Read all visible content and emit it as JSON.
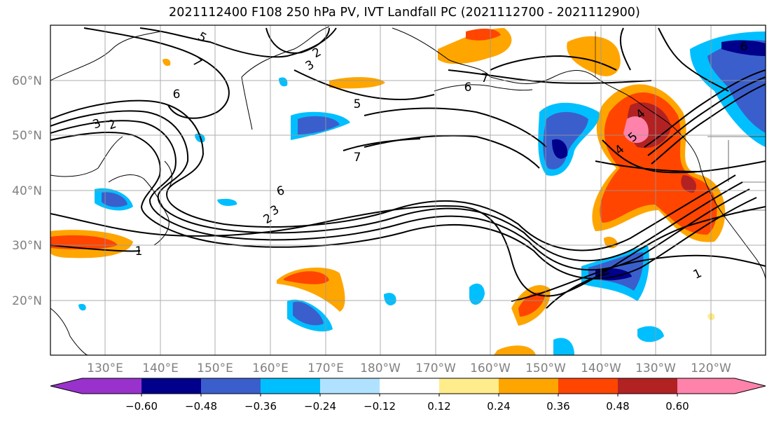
{
  "title": "2021112400 F108 250 hPa PV, IVT Landfall PC (2021112700 - 2021112900)",
  "map": {
    "lat_labels": [
      "60°N",
      "50°N",
      "40°N",
      "30°N",
      "20°N"
    ],
    "lon_labels": [
      "130°E",
      "140°E",
      "150°E",
      "160°E",
      "170°E",
      "180°W",
      "170°W",
      "160°W",
      "150°W",
      "140°W",
      "130°W",
      "120°W"
    ],
    "pv_contour_labels": [
      "5",
      "7",
      "2",
      "3",
      "6",
      "3",
      "2",
      "5",
      "7",
      "6",
      "7",
      "6",
      "2",
      "3",
      "1",
      "5",
      "4",
      "4",
      "6",
      "1"
    ]
  },
  "colorbar": {
    "ticks": [
      "−0.60",
      "−0.48",
      "−0.36",
      "−0.24",
      "−0.12",
      "0.12",
      "0.24",
      "0.36",
      "0.48",
      "0.60"
    ],
    "colors": [
      "#9932cc",
      "#00008b",
      "#3a5fcd",
      "#00bfff",
      "#b0e2ff",
      "#ffffff",
      "#ffec8b",
      "#ffa500",
      "#ff4500",
      "#b22222",
      "#ff82ab"
    ]
  }
}
